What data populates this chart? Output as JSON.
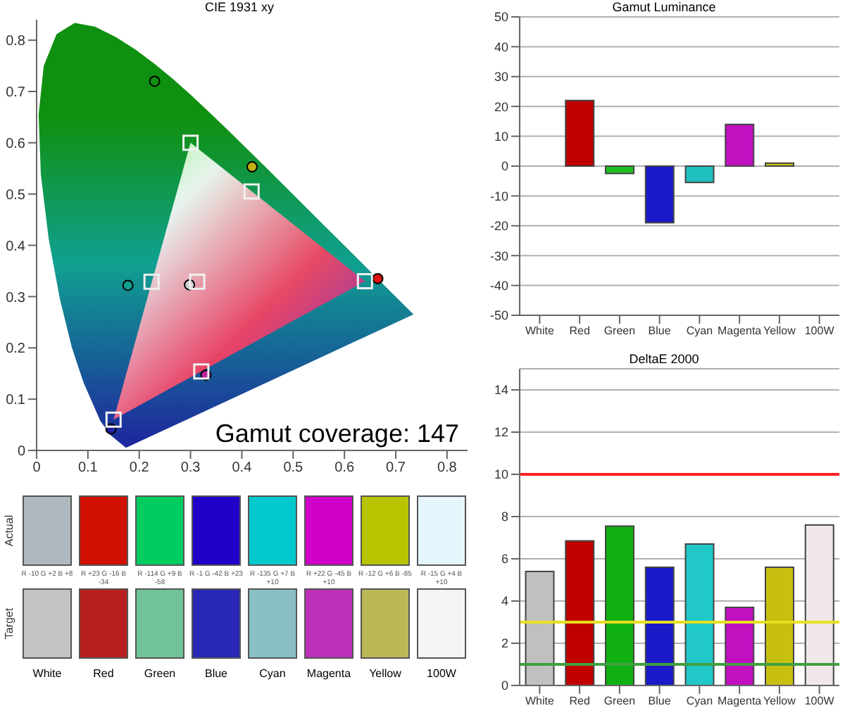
{
  "chart_data": [
    {
      "type": "scatter",
      "title": "CIE 1931 xy",
      "xlim": [
        0,
        0.84
      ],
      "ylim": [
        0,
        0.84
      ],
      "xticks": [
        0,
        0.1,
        0.2,
        0.3,
        0.4,
        0.5,
        0.6,
        0.7,
        0.8
      ],
      "yticks": [
        0,
        0.1,
        0.2,
        0.3,
        0.4,
        0.5,
        0.6,
        0.7,
        0.8
      ],
      "annotations": [
        "Gamut coverage: 147"
      ],
      "series": [
        {
          "marker": "circle",
          "x": [
            0.298,
            0.665,
            0.23,
            0.145,
            0.178,
            0.33,
            0.42
          ],
          "values": [
            0.323,
            0.335,
            0.72,
            0.042,
            0.322,
            0.147,
            0.553
          ],
          "colors": [
            "#d0d0d0",
            "#e01010",
            "#109010",
            "#2020a0",
            "#10a090",
            "#c020a0",
            "#c0b010"
          ]
        },
        {
          "marker": "square",
          "x": [
            0.313,
            0.64,
            0.3,
            0.15,
            0.224,
            0.321,
            0.419
          ],
          "values": [
            0.329,
            0.33,
            0.6,
            0.06,
            0.329,
            0.154,
            0.505
          ],
          "color": "#f0f0f0"
        }
      ]
    },
    {
      "type": "bar",
      "title": "Gamut Luminance",
      "categories": [
        "White",
        "Red",
        "Green",
        "Blue",
        "Cyan",
        "Magenta",
        "Yellow",
        "100W"
      ],
      "values": [
        0,
        22,
        -2.5,
        -19,
        -5.5,
        14,
        1,
        0
      ],
      "colors": [
        "#909090",
        "#c00000",
        "#20c020",
        "#1a1ac8",
        "#20c0c0",
        "#c010c0",
        "#c8c010",
        "#909090"
      ],
      "ylim": [
        -50,
        50
      ],
      "yticks": [
        -50,
        -40,
        -30,
        -20,
        -10,
        0,
        10,
        20,
        30,
        40,
        50
      ],
      "grid": "y"
    },
    {
      "type": "bar",
      "title": "DeltaE 2000",
      "categories": [
        "White",
        "Red",
        "Green",
        "Blue",
        "Cyan",
        "Magenta",
        "Yellow",
        "100W"
      ],
      "values": [
        5.4,
        6.85,
        7.55,
        5.6,
        6.7,
        3.7,
        5.6,
        7.6
      ],
      "colors": [
        "#c0c0c0",
        "#c00000",
        "#10b010",
        "#1a1ac8",
        "#20c8c8",
        "#c010c0",
        "#c8c010",
        "#f0e8e8"
      ],
      "ylim": [
        0,
        15
      ],
      "yticks": [
        0,
        2,
        4,
        6,
        8,
        10,
        12,
        14
      ],
      "grid": "y",
      "ref_lines": [
        {
          "axis": "y",
          "value": 10,
          "color": "#ff2020"
        },
        {
          "axis": "y",
          "value": 3,
          "color": "#e8e020"
        },
        {
          "axis": "y",
          "value": 1,
          "color": "#40a040"
        }
      ]
    },
    {
      "type": "other",
      "categories": [
        "White",
        "Red",
        "Green",
        "Blue",
        "Cyan",
        "Magenta",
        "Yellow",
        "100W"
      ],
      "colors": [
        "#b0b8c0",
        "#d01000",
        "#00cc60",
        "#2000c8",
        "#00c8cc",
        "#d000c8",
        "#b8c400",
        "#e4f6fc",
        "#c4c4c4",
        "#b82020",
        "#70c498",
        "#2828b4",
        "#88c0c4",
        "#bc30b8",
        "#bcb858",
        "#f4f4f4"
      ],
      "annotations": [
        "Actual",
        "Target",
        "R -10 G +2 B +8",
        "R +23 G -16 B -34",
        "R -114 G +9 B -58",
        "R -1 G -42 B +23",
        "R -135 G +7 B +10",
        "R +22 G -45 B +10",
        "R -12 G +6 B -85",
        "R -15 G +4 B +10"
      ]
    }
  ]
}
